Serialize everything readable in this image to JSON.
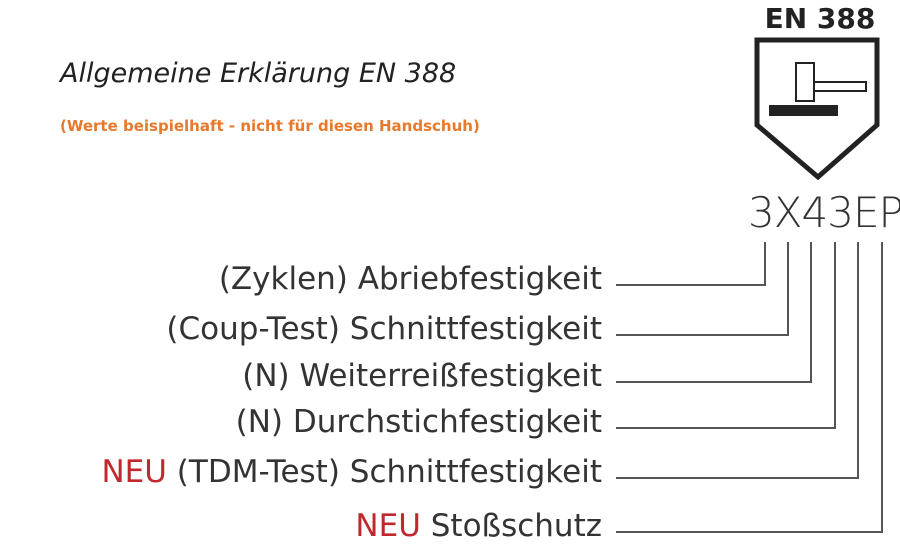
{
  "title": "Allgemeine Erklärung EN 388",
  "subtitle": "(Werte beispielhaft - nicht für diesen Handschuh)",
  "badge": "EN 388",
  "icon": "shield-hammer-icon",
  "code": "3X43EP",
  "new_label": "NEU",
  "colors": {
    "accent": "#e8782a",
    "new": "#c0282d"
  },
  "items": [
    {
      "text": "(Zyklen) Abriebfestigkeit",
      "new": false
    },
    {
      "text": "(Coup-Test) Schnittfestigkeit",
      "new": false
    },
    {
      "text": "(N) Weiterreißfestigkeit",
      "new": false
    },
    {
      "text": "(N) Durchstichfestigkeit",
      "new": false
    },
    {
      "text": "(TDM-Test) Schnittfestigkeit",
      "new": true
    },
    {
      "text": "Stoßschutz",
      "new": true
    }
  ]
}
